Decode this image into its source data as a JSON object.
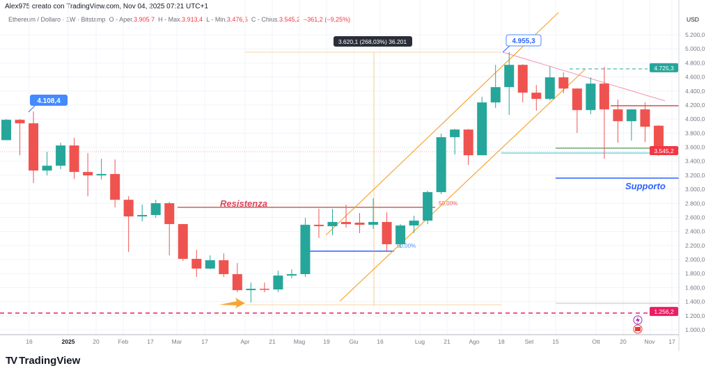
{
  "header": {
    "author_line": "Alex975 creato con TradingView.com, Nov 04, 2025 07:21 UTC+1"
  },
  "symbol": {
    "name": "Ethereum / Dollaro · 1W · Bitstamp",
    "open_label": "O - Aper.",
    "open": "3.905,7",
    "high_label": "H - Max.",
    "high": "3.913,4",
    "low_label": "L - Min.",
    "low": "3.476,5",
    "close_label": "C - Chius.",
    "close": "3.545,2",
    "change": "−361,2 (−9,25%)"
  },
  "colors": {
    "up": "#26a69a",
    "down": "#ef5350",
    "accent": "#2962ff",
    "orange": "#f7a533",
    "pink": "#e91e63"
  },
  "price_axis": {
    "currency": "USD",
    "ticks": [
      "5.200,0",
      "5.000,0",
      "4.800,0",
      "4.600,0",
      "4.400,0",
      "4.200,0",
      "4.000,0",
      "3.800,0",
      "3.600,0",
      "3.400,0",
      "3.200,0",
      "3.000,0",
      "2.800,0",
      "2.600,0",
      "2.400,0",
      "2.200,0",
      "2.000,0",
      "1.800,0",
      "1.600,0",
      "1.400,0",
      "1.200,0",
      "1.000,0"
    ],
    "tick_values": [
      5200,
      5000,
      4800,
      4600,
      4400,
      4200,
      4000,
      3800,
      3600,
      3400,
      3200,
      3000,
      2800,
      2600,
      2400,
      2200,
      2000,
      1800,
      1600,
      1400,
      1200,
      1000
    ],
    "labels": [
      {
        "text": "4.725,3",
        "value": 4725.3,
        "color": "#26a69a"
      },
      {
        "text": "3.545,2",
        "value": 3545.2,
        "color": "#f23645"
      },
      {
        "text": "1.256,2",
        "value": 1256.2,
        "color": "#e91e63"
      }
    ]
  },
  "time_axis": {
    "labels": [
      "16",
      "2025",
      "20",
      "Feb",
      "17",
      "Mar",
      "17",
      "Apr",
      "21",
      "Mag",
      "19",
      "Giu",
      "16",
      "Lug",
      "21",
      "Ago",
      "18",
      "Set",
      "15",
      "Ott",
      "20",
      "Nov",
      "17"
    ]
  },
  "candles": [
    [
      3700,
      4000,
      3700,
      3990
    ],
    [
      3990,
      4000,
      3485,
      3940
    ],
    [
      3940,
      4108.4,
      3089,
      3267
    ],
    [
      3267,
      3534,
      3198,
      3336
    ],
    [
      3336,
      3663,
      3287,
      3624
    ],
    [
      3624,
      3732,
      3148,
      3247
    ],
    [
      3247,
      3515,
      2901,
      3198
    ],
    [
      3198,
      3435,
      3138,
      3218
    ],
    [
      3218,
      3426,
      2742,
      2851
    ],
    [
      2851,
      2901,
      2109,
      2614
    ],
    [
      2614,
      2782,
      2544,
      2634
    ],
    [
      2634,
      2851,
      2594,
      2802
    ],
    [
      2802,
      2822,
      2059,
      2505
    ],
    [
      2505,
      2505,
      1980,
      2010
    ],
    [
      2010,
      2139,
      1752,
      1871
    ],
    [
      1871,
      2059,
      1861,
      1990
    ],
    [
      1990,
      2089,
      1752,
      1792
    ],
    [
      1792,
      1950,
      1535,
      1564
    ],
    [
      1564,
      1673,
      1386,
      1584
    ],
    [
      1584,
      1673,
      1535,
      1574
    ],
    [
      1574,
      1842,
      1535,
      1772
    ],
    [
      1772,
      1861,
      1733,
      1792
    ],
    [
      1792,
      2594,
      1752,
      2495
    ],
    [
      2495,
      2723,
      2307,
      2475
    ],
    [
      2475,
      2723,
      2346,
      2535
    ],
    [
      2535,
      2782,
      2455,
      2505
    ],
    [
      2525,
      2663,
      2376,
      2495
    ],
    [
      2495,
      2871,
      2436,
      2535
    ],
    [
      2535,
      2673,
      2109,
      2218
    ],
    [
      2218,
      2505,
      2168,
      2485
    ],
    [
      2485,
      2624,
      2376,
      2554
    ],
    [
      2554,
      2980,
      2505,
      2960
    ],
    [
      2960,
      3792,
      2931,
      3742
    ],
    [
      3742,
      3860,
      3495,
      3851
    ],
    [
      3851,
      3860,
      3346,
      3485
    ],
    [
      3485,
      4317,
      3485,
      4237
    ],
    [
      4237,
      4772,
      4158,
      4455
    ],
    [
      4455,
      4955.3,
      4059,
      4772
    ],
    [
      4772,
      4780,
      4237,
      4376
    ],
    [
      4376,
      4485,
      4119,
      4287
    ],
    [
      4287,
      4752,
      4267,
      4594
    ],
    [
      4594,
      4663,
      4366,
      4435
    ],
    [
      4435,
      4435,
      3802,
      4128
    ],
    [
      4128,
      4594,
      4069,
      4505
    ],
    [
      4505,
      4742,
      3435,
      4138
    ],
    [
      4138,
      4277,
      3663,
      3970
    ],
    [
      3970,
      4138,
      3693,
      4138
    ],
    [
      4138,
      4237,
      3673,
      3891
    ],
    [
      3905.7,
      3913.4,
      3476.5,
      3545.2
    ]
  ],
  "annotations": {
    "resistance_label": "Resistenza",
    "resistance_value": 2742,
    "support_label": "Supporto",
    "support_value": 3160,
    "fib_red": "50,00%",
    "fib_blue": "50,00%",
    "callout_low": "4.108,4",
    "callout_high": "4.955,3",
    "measure": "3.620,1 (268,03%) 36.201"
  },
  "brand": "TradingView"
}
